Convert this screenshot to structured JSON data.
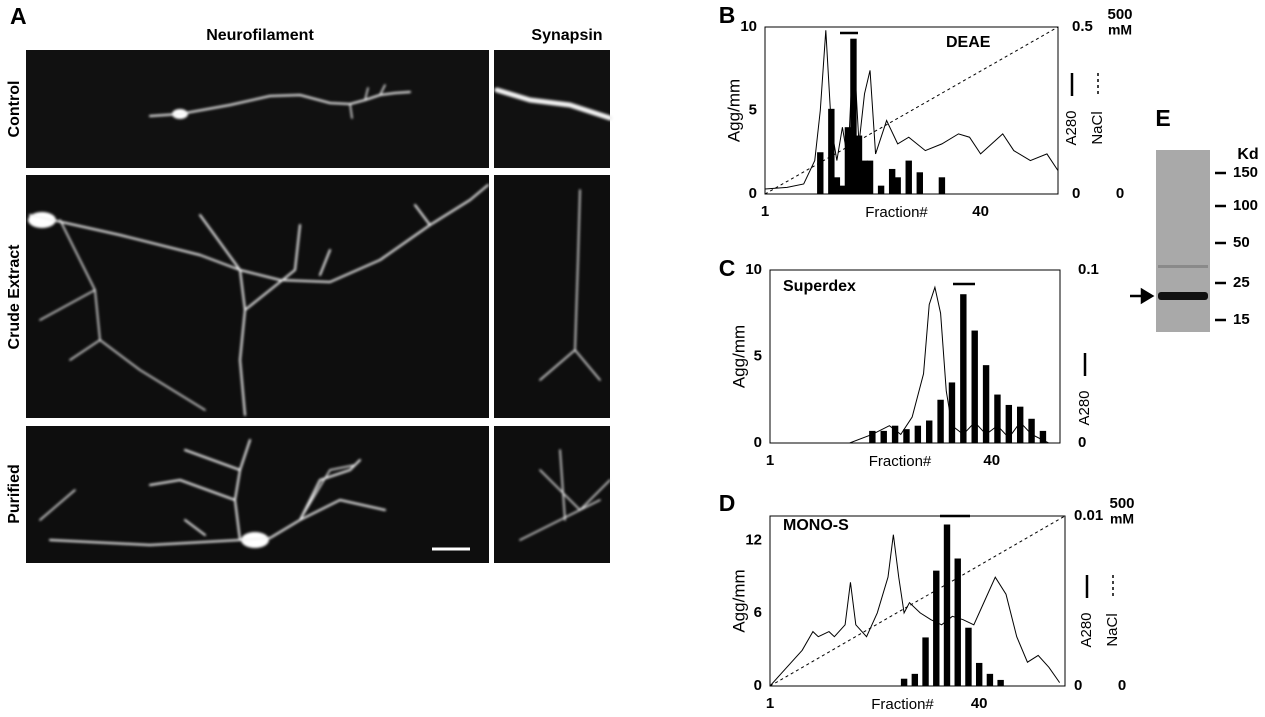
{
  "panel_a": {
    "label": "A",
    "columns": [
      "Neurofilament",
      "Synapsin"
    ],
    "rows": [
      "Control",
      "Crude Extract",
      "Purified"
    ]
  },
  "chart_data": [
    {
      "type": "bar",
      "panel": "B",
      "title": "DEAE",
      "xlabel": "Fraction#",
      "xlim": [
        1,
        54
      ],
      "xticks": [
        1,
        40
      ],
      "ylim": [
        0,
        10
      ],
      "yticks": [
        0,
        5,
        10
      ],
      "y2lim": [
        0,
        0.5
      ],
      "y2ticks": [
        0,
        0.5
      ],
      "y3lim": [
        0,
        500
      ],
      "y3ticks": [
        0,
        500
      ],
      "y3unit": "mM",
      "series": [
        {
          "name": "Agg/mm",
          "type": "bar",
          "color": "#000000",
          "x": [
            11,
            13,
            14,
            15,
            16,
            17,
            18,
            19,
            20,
            22,
            24,
            25,
            27,
            29,
            33
          ],
          "values": [
            2.5,
            5.1,
            1.0,
            0.5,
            4.0,
            9.3,
            3.5,
            2.0,
            2.0,
            0.5,
            1.5,
            1.0,
            2.0,
            1.3,
            1.0
          ]
        },
        {
          "name": "A280",
          "type": "line",
          "axis": "y2",
          "color": "#000000",
          "style": "solid",
          "x": [
            1,
            5,
            8,
            10,
            11,
            12,
            13,
            14,
            15,
            16,
            17,
            18,
            19,
            20,
            21,
            23,
            25,
            27,
            30,
            33,
            36,
            38,
            40,
            42,
            44,
            46,
            49,
            52,
            54
          ],
          "values": [
            0.015,
            0.02,
            0.03,
            0.1,
            0.25,
            0.49,
            0.2,
            0.1,
            0.2,
            0.1,
            0.45,
            0.15,
            0.3,
            0.37,
            0.12,
            0.22,
            0.15,
            0.17,
            0.13,
            0.15,
            0.18,
            0.17,
            0.12,
            0.15,
            0.18,
            0.13,
            0.1,
            0.12,
            0.07
          ]
        },
        {
          "name": "NaCl",
          "type": "line",
          "axis": "y3",
          "color": "#000000",
          "style": "dashed",
          "x": [
            1,
            54
          ],
          "values": [
            0,
            500
          ]
        }
      ]
    },
    {
      "type": "bar",
      "panel": "C",
      "title": "Superdex",
      "xlabel": "Fraction#",
      "xlim": [
        1,
        52
      ],
      "xticks": [
        1,
        40
      ],
      "ylim": [
        0,
        10
      ],
      "yticks": [
        0,
        5,
        10
      ],
      "y2lim": [
        0,
        0.1
      ],
      "y2ticks": [
        0,
        0.1
      ],
      "series": [
        {
          "name": "Agg/mm",
          "type": "bar",
          "color": "#000000",
          "x": [
            19,
            21,
            23,
            25,
            27,
            29,
            31,
            33,
            35,
            37,
            39,
            41,
            43,
            45,
            47,
            49
          ],
          "values": [
            0.7,
            0.7,
            1.0,
            0.8,
            1.0,
            1.3,
            2.5,
            3.5,
            8.6,
            6.5,
            4.5,
            2.8,
            2.2,
            2.1,
            1.4,
            0.7
          ]
        },
        {
          "name": "A280",
          "type": "line",
          "axis": "y2",
          "color": "#000000",
          "style": "solid",
          "x": [
            1,
            15,
            19,
            22,
            24,
            26,
            28,
            29,
            30,
            31,
            32,
            33,
            35,
            37,
            39,
            41,
            43,
            45,
            47,
            50
          ],
          "values": [
            0,
            0,
            0.005,
            0.01,
            0.005,
            0.015,
            0.04,
            0.08,
            0.09,
            0.075,
            0.03,
            0.01,
            0.005,
            0.012,
            0.005,
            0.01,
            0.003,
            0.012,
            0.005,
            0
          ]
        }
      ]
    },
    {
      "type": "bar",
      "panel": "D",
      "title": "MONO-S",
      "xlabel": "Fraction#",
      "xlim": [
        1,
        56
      ],
      "xticks": [
        1,
        40
      ],
      "ylim": [
        0,
        14
      ],
      "yticks": [
        0,
        6,
        12
      ],
      "y2lim": [
        0,
        0.01
      ],
      "y2ticks": [
        0,
        0.01
      ],
      "y3lim": [
        0,
        500
      ],
      "y3ticks": [
        0,
        500
      ],
      "y3unit": "mM",
      "series": [
        {
          "name": "Agg/mm",
          "type": "bar",
          "color": "#000000",
          "x": [
            26,
            28,
            30,
            32,
            34,
            36,
            38,
            40,
            42,
            44
          ],
          "values": [
            0.6,
            1.0,
            4.0,
            9.5,
            13.3,
            10.5,
            4.8,
            1.9,
            1.0,
            0.5
          ]
        },
        {
          "name": "A280",
          "type": "line",
          "axis": "y2",
          "color": "#000000",
          "style": "solid",
          "x": [
            1,
            3,
            5,
            7,
            9,
            10,
            12,
            13,
            15,
            16,
            17,
            19,
            21,
            23,
            24,
            25,
            26,
            27,
            29,
            31,
            33,
            35,
            37,
            39,
            41,
            43,
            45,
            47,
            49,
            51,
            53,
            55
          ],
          "values": [
            0,
            0.0007,
            0.0014,
            0.0021,
            0.0032,
            0.0029,
            0.0032,
            0.0029,
            0.0036,
            0.0061,
            0.0036,
            0.0029,
            0.0043,
            0.0064,
            0.0089,
            0.0064,
            0.0043,
            0.0049,
            0.0043,
            0.0039,
            0.0036,
            0.0041,
            0.0039,
            0.0036,
            0.005,
            0.0064,
            0.0054,
            0.0029,
            0.0014,
            0.0018,
            0.0011,
            0.0002
          ]
        },
        {
          "name": "NaCl",
          "type": "line",
          "axis": "y3",
          "color": "#000000",
          "style": "dashed",
          "x": [
            1,
            56
          ],
          "values": [
            0,
            500
          ]
        }
      ]
    }
  ],
  "panel_e": {
    "label": "E",
    "unit": "Kd",
    "markers": [
      150,
      100,
      50,
      25,
      15
    ]
  }
}
